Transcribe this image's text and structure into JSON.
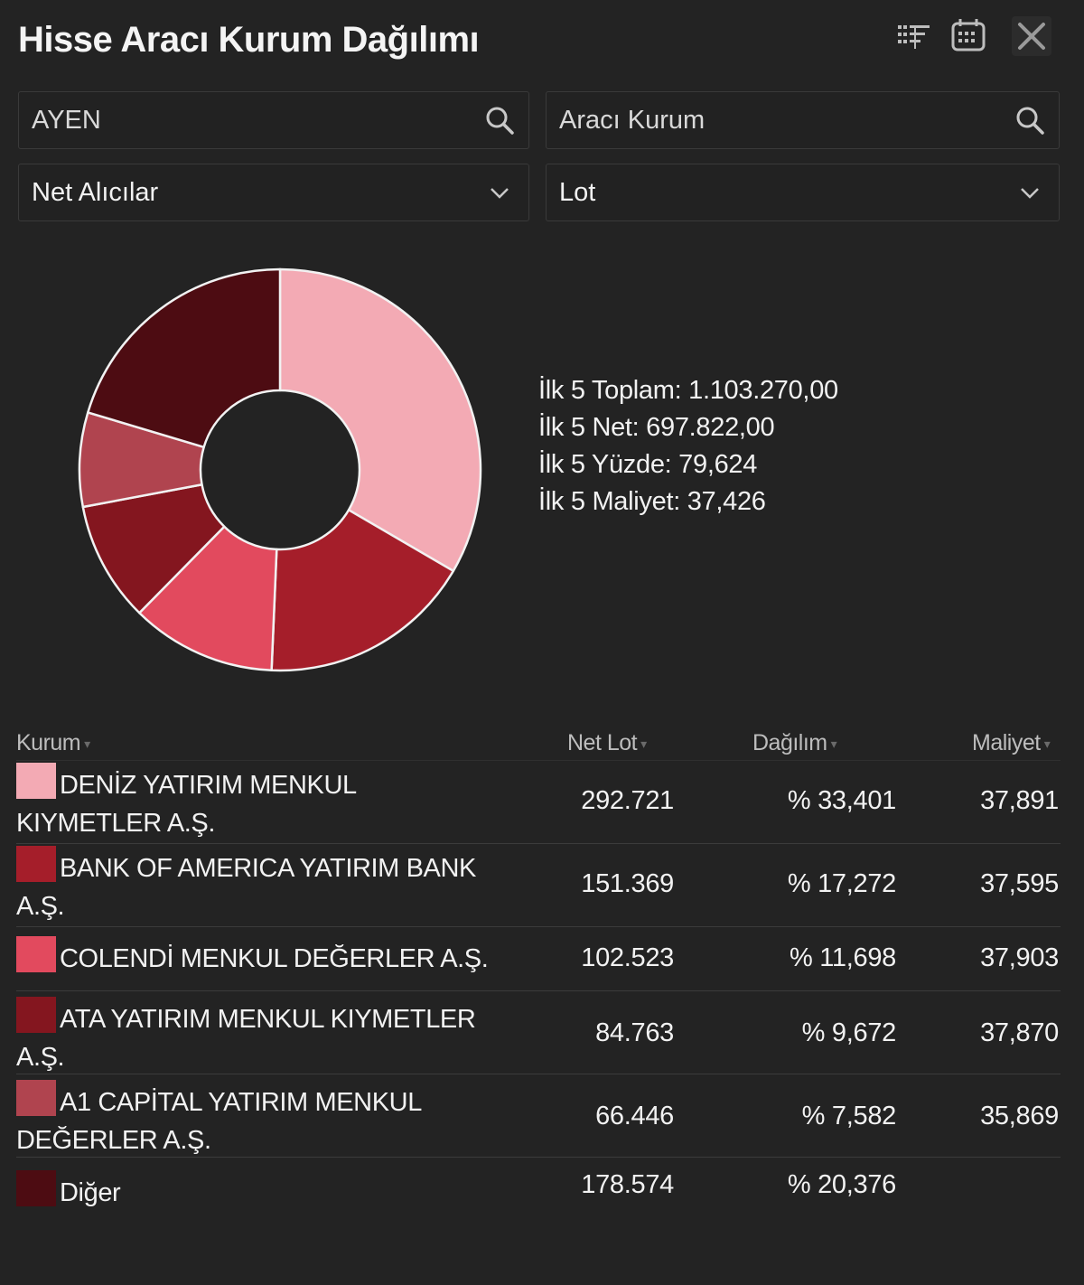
{
  "header": {
    "title": "Hisse Aracı Kurum Dağılımı",
    "icons": [
      "filter-list-icon",
      "calendar-icon",
      "close-icon"
    ]
  },
  "filters": {
    "symbol": "AYEN",
    "broker_placeholder": "Aracı Kurum",
    "direction": "Net Alıcılar",
    "unit": "Lot"
  },
  "summary": {
    "total": "İlk 5 Toplam: 1.103.270,00",
    "net": "İlk 5 Net: 697.822,00",
    "percent": "İlk 5 Yüzde: 79,624",
    "cost": "İlk 5 Maliyet: 37,426"
  },
  "chart_data": {
    "type": "pie",
    "variant": "donut",
    "values": [
      292721,
      151369,
      102523,
      84763,
      66446,
      178574
    ],
    "colors": [
      "#f3aab4",
      "#a51e2a",
      "#e24a5e",
      "#84161f",
      "#b0444f",
      "#4d0c12"
    ]
  },
  "table": {
    "headers": {
      "kurum": "Kurum",
      "net_lot": "Net Lot",
      "dagilim": "Dağılım",
      "maliyet": "Maliyet"
    },
    "rows": [
      {
        "line1": "DENİZ YATIRIM MENKUL",
        "line2": "KIYMETLER A.Ş.",
        "net_lot": "292.721",
        "dagilim": "% 33,401",
        "maliyet": "37,891",
        "color": "#f3aab4"
      },
      {
        "line1": "BANK OF AMERICA YATIRIM BANK",
        "line2": "A.Ş.",
        "net_lot": "151.369",
        "dagilim": "% 17,272",
        "maliyet": "37,595",
        "color": "#a51e2a"
      },
      {
        "line1": "COLENDİ MENKUL DEĞERLER A.Ş.",
        "line2": "",
        "net_lot": "102.523",
        "dagilim": "% 11,698",
        "maliyet": "37,903",
        "color": "#e24a5e"
      },
      {
        "line1": "ATA YATIRIM MENKUL KIYMETLER",
        "line2": "A.Ş.",
        "net_lot": "84.763",
        "dagilim": "% 9,672",
        "maliyet": "37,870",
        "color": "#84161f"
      },
      {
        "line1": "A1 CAPİTAL YATIRIM MENKUL",
        "line2": "DEĞERLER A.Ş.",
        "net_lot": "66.446",
        "dagilim": "% 7,582",
        "maliyet": "35,869",
        "color": "#b0444f"
      },
      {
        "line1": "Diğer",
        "line2": "",
        "net_lot": "178.574",
        "dagilim": "% 20,376",
        "maliyet": "",
        "color": "#4d0c12"
      }
    ]
  }
}
